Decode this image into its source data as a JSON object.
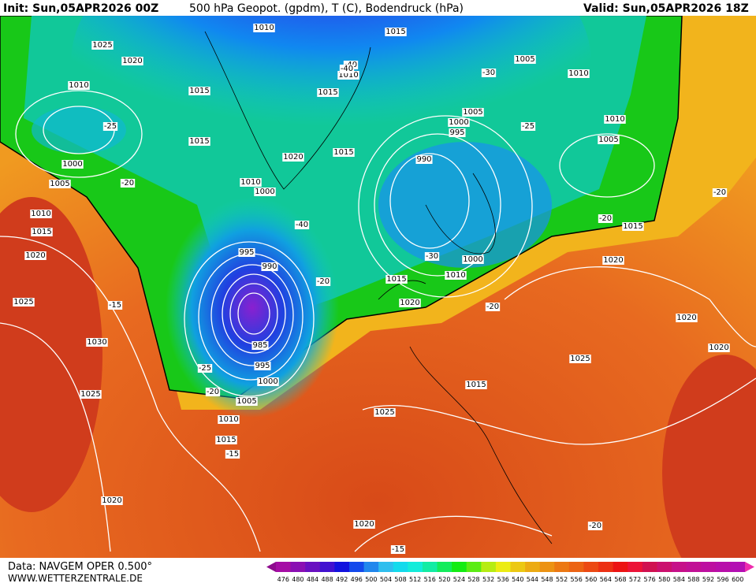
{
  "header": {
    "init": "Init: Sun,05APR2026 00Z",
    "title": "500 hPa Geopot. (gpdm), T (C), Bodendruck (hPa)",
    "valid": "Valid: Sun,05APR2026 18Z"
  },
  "footer": {
    "source": "Data: NAVGEM OPER 0.500°",
    "site": "WWW.WETTERZENTRALE.DE"
  },
  "colorbar": {
    "values": [
      476,
      480,
      484,
      488,
      492,
      496,
      500,
      504,
      508,
      512,
      516,
      520,
      524,
      528,
      532,
      536,
      540,
      544,
      548,
      552,
      556,
      560,
      564,
      568,
      572,
      576,
      580,
      584,
      588,
      592,
      596,
      600
    ]
  },
  "pressure_labels": [
    "1010",
    "1015",
    "1025",
    "1020",
    "1010",
    "1015",
    "1015",
    "1000",
    "1005",
    "1010",
    "1015",
    "1020",
    "1025",
    "1030",
    "1025",
    "1020",
    "1015",
    "1010",
    "1005",
    "1000",
    "995",
    "990",
    "985",
    "995",
    "1000",
    "1020",
    "1015",
    "1005",
    "1010",
    "1000",
    "995",
    "990",
    "1005",
    "1000",
    "1010",
    "1010",
    "1005",
    "1010",
    "1015",
    "1020",
    "1025",
    "1020",
    "1020",
    "1015",
    "1015",
    "1020",
    "1025",
    "1010",
    "1015",
    "1020"
  ],
  "temperature_labels": [
    "-25",
    "-20",
    "-40",
    "-40",
    "-30",
    "-25",
    "-20",
    "-20",
    "-15",
    "-20",
    "-15",
    "-20",
    "-15",
    "-40",
    "-30",
    "-25",
    "-20",
    "-20"
  ]
}
